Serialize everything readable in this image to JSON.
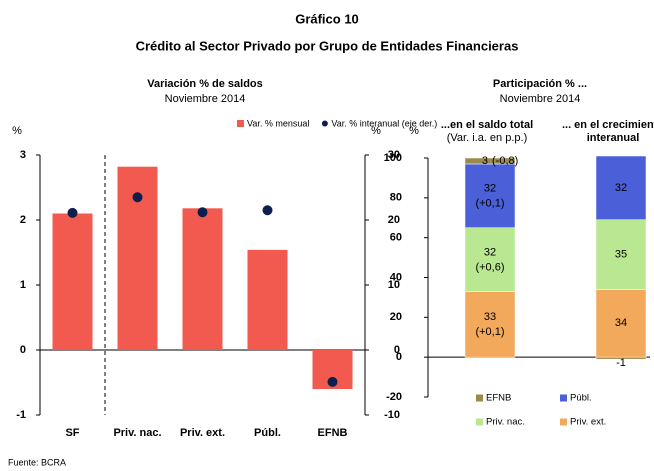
{
  "header": {
    "title": "Gráfico 10",
    "subtitle": "Crédito al Sector Privado por Grupo de Entidades Financieras"
  },
  "source": "Fuente: BCRA",
  "chart_data": [
    {
      "type": "combo",
      "title": "Variación % de saldos",
      "subtitle": "Noviembre 2014",
      "ylabel": "%",
      "y2label": "%",
      "categories": [
        "SF",
        "Priv. nac.",
        "Priv. ext.",
        "Públ.",
        "EFNB"
      ],
      "ylim": [
        -1,
        3
      ],
      "yticks": [
        -1,
        0,
        1,
        2,
        3
      ],
      "y2lim": [
        -10,
        30
      ],
      "y2ticks": [
        -10,
        0,
        10,
        20,
        30
      ],
      "series": [
        {
          "name": "Var. % mensual",
          "type": "bar",
          "color": "#f25a4f",
          "values": [
            2.1,
            2.82,
            2.18,
            1.54,
            -0.6
          ]
        },
        {
          "name": "Var. % interanual (eje der.)",
          "type": "point",
          "axis": "y2",
          "color": "#0d1f4d",
          "values": [
            21.1,
            23.5,
            21.2,
            21.5,
            -4.9
          ]
        }
      ]
    },
    {
      "type": "stacked_bar",
      "title": "Participación % ...",
      "subtitle": "Noviembre 2014",
      "ylabel": "%",
      "categories": [
        "...en el saldo total",
        "... en el crecimiento interanual"
      ],
      "category_notes": [
        "(Var. i.a. en p.p.)",
        null
      ],
      "ylim": [
        -20,
        100
      ],
      "yticks": [
        -20,
        0,
        20,
        40,
        60,
        80,
        100
      ],
      "series": [
        {
          "name": "Priv. ext.",
          "color": "#f2a95b",
          "values": [
            33,
            34
          ],
          "change_labels": [
            "(+0,1)",
            null
          ]
        },
        {
          "name": "Priv. nac.",
          "color": "#b9e792",
          "values": [
            32,
            35
          ],
          "change_labels": [
            "(+0,6)",
            null
          ]
        },
        {
          "name": "Públ.",
          "color": "#4a5fd8",
          "values": [
            32,
            32
          ],
          "change_labels": [
            "(+0,1)",
            null
          ]
        },
        {
          "name": "EFNB",
          "color": "#9c8a4a",
          "values": [
            3,
            -1
          ],
          "change_labels": [
            "(-0,8)",
            null
          ]
        }
      ]
    }
  ]
}
